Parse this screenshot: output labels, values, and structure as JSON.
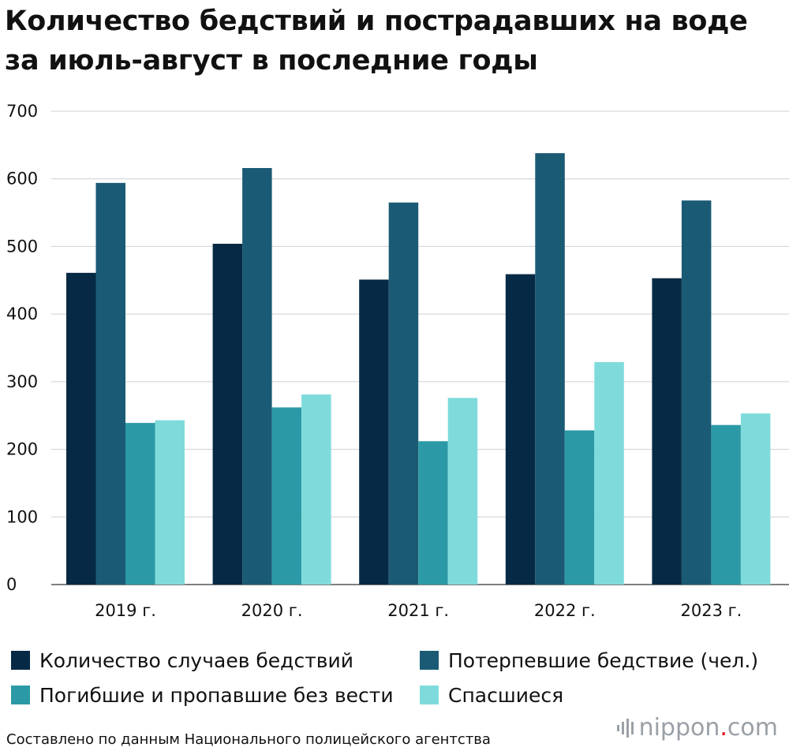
{
  "title": "Количество бедствий и пострадавших на воде за июль-август в последние годы",
  "source": "Составлено по данным Национального полицейского агентства",
  "brand": {
    "name": "nippon",
    "dot": ".",
    "suffix": "com",
    "dot_color": "#e60012",
    "text_color": "#9aa0a6"
  },
  "chart_data": {
    "type": "bar",
    "title": "Количество бедствий и пострадавших на воде за июль-август в последние годы",
    "xlabel": "",
    "ylabel": "",
    "categories": [
      "2019 г.",
      "2020 г.",
      "2021 г.",
      "2022 г.",
      "2023 г."
    ],
    "ylim": [
      0,
      700
    ],
    "yticks": [
      0,
      100,
      200,
      300,
      400,
      500,
      600,
      700
    ],
    "grid": true,
    "legend_position": "bottom",
    "series": [
      {
        "name": "Количество случаев бедствий",
        "color": "#062a45",
        "values": [
          461,
          504,
          451,
          459,
          453
        ]
      },
      {
        "name": "Потерпевшие бедствие (чел.)",
        "color": "#1b5a74",
        "values": [
          594,
          616,
          565,
          638,
          568
        ]
      },
      {
        "name": "Погибшие и пропавшие без вести",
        "color": "#2b9aa6",
        "values": [
          239,
          262,
          212,
          228,
          236
        ]
      },
      {
        "name": "Спасшиеся",
        "color": "#7fdbdb",
        "values": [
          243,
          281,
          276,
          329,
          253
        ]
      }
    ]
  }
}
